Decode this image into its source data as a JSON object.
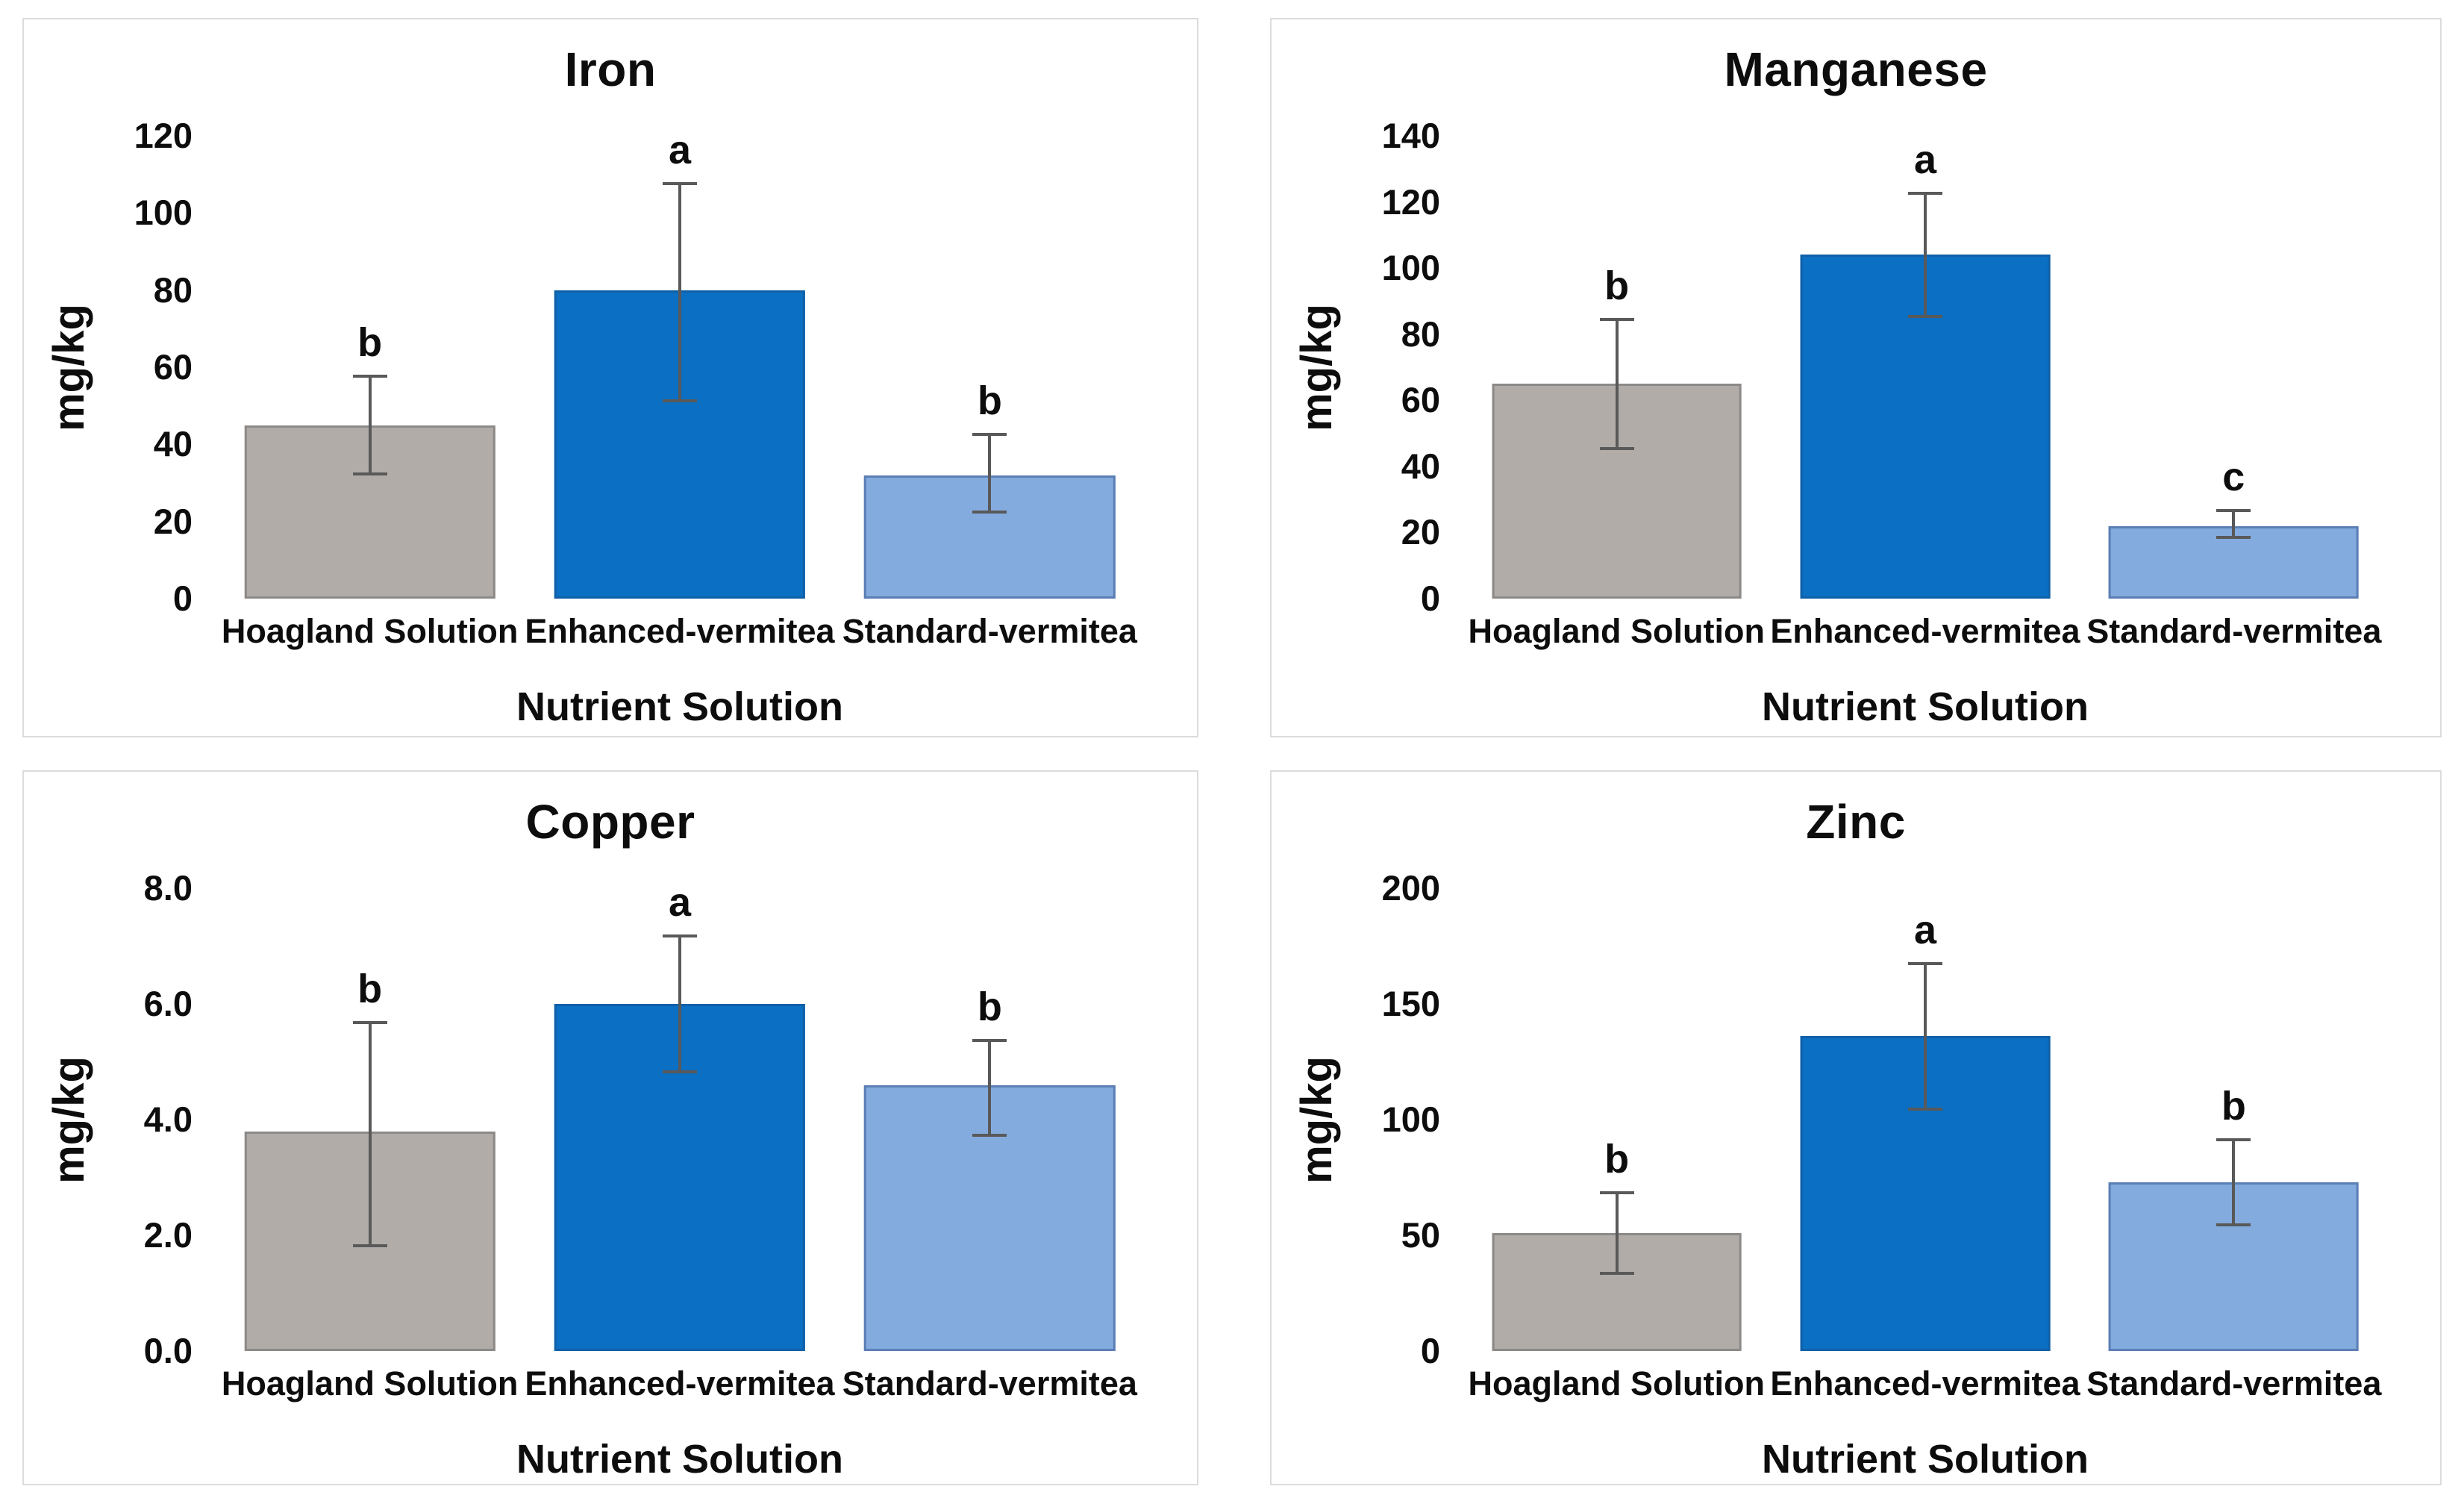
{
  "figure": {
    "background": "#ffffff",
    "panel_border_color": "#dcdcdc",
    "text_color": "#0d0d0d",
    "error_bar_color": "#595959"
  },
  "bar_styles": [
    {
      "category": "Hoagland Solution",
      "fill": "#b1aca8",
      "border": "#8c8a88"
    },
    {
      "category": "Enhanced-vermitea",
      "fill": "#0b6fc4",
      "border": "#1060a8"
    },
    {
      "category": "Standard-vermitea",
      "fill": "#84abde",
      "border": "#5b7eb5"
    }
  ],
  "chart_data": [
    {
      "type": "bar",
      "title": "Iron",
      "ylabel": "mg/kg",
      "xlabel": "Nutrient Solution",
      "categories": [
        "Hoagland Solution",
        "Enhanced-vermitea",
        "Standard-vermitea"
      ],
      "values": [
        45,
        80,
        32
      ],
      "error_low": [
        32,
        51,
        22
      ],
      "error_high": [
        58,
        108,
        43
      ],
      "letters": [
        "b",
        "a",
        "b"
      ],
      "ylim": [
        0,
        120
      ],
      "ytick_labels": [
        "0",
        "20",
        "40",
        "60",
        "80",
        "100",
        "120"
      ],
      "grid": false,
      "legend": false
    },
    {
      "type": "bar",
      "title": "Manganese",
      "ylabel": "mg/kg",
      "xlabel": "Nutrient Solution",
      "categories": [
        "Hoagland Solution",
        "Enhanced-vermitea",
        "Standard-vermitea"
      ],
      "values": [
        65,
        104,
        22
      ],
      "error_low": [
        45,
        85,
        18
      ],
      "error_high": [
        85,
        123,
        27
      ],
      "letters": [
        "b",
        "a",
        "c"
      ],
      "ylim": [
        0,
        140
      ],
      "ytick_labels": [
        "0",
        "20",
        "40",
        "60",
        "80",
        "100",
        "120",
        "140"
      ],
      "grid": false,
      "legend": false
    },
    {
      "type": "bar",
      "title": "Copper",
      "ylabel": "mg/kg",
      "xlabel": "Nutrient Solution",
      "categories": [
        "Hoagland Solution",
        "Enhanced-vermitea",
        "Standard-vermitea"
      ],
      "values": [
        3.8,
        6.0,
        4.6
      ],
      "error_low": [
        1.8,
        4.8,
        3.7
      ],
      "error_high": [
        5.7,
        7.2,
        5.4
      ],
      "letters": [
        "b",
        "a",
        "b"
      ],
      "ylim": [
        0,
        8
      ],
      "ytick_labels": [
        "0.0",
        "2.0",
        "4.0",
        "6.0",
        "8.0"
      ],
      "grid": false,
      "legend": false
    },
    {
      "type": "bar",
      "title": "Zinc",
      "ylabel": "mg/kg",
      "xlabel": "Nutrient Solution",
      "categories": [
        "Hoagland Solution",
        "Enhanced-vermitea",
        "Standard-vermitea"
      ],
      "values": [
        51,
        136,
        73
      ],
      "error_low": [
        33,
        104,
        54
      ],
      "error_high": [
        69,
        168,
        92
      ],
      "letters": [
        "b",
        "a",
        "b"
      ],
      "ylim": [
        0,
        200
      ],
      "ytick_labels": [
        "0",
        "50",
        "100",
        "150",
        "200"
      ],
      "grid": false,
      "legend": false
    }
  ]
}
